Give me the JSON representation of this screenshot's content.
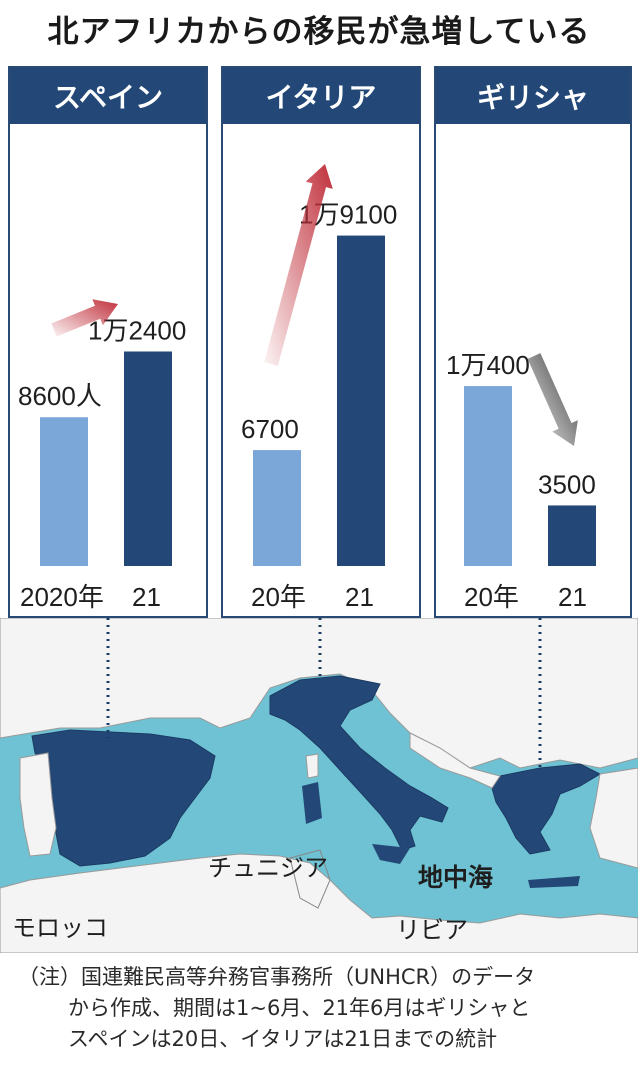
{
  "title": "北アフリカからの移民が急増している",
  "chart_data": [
    {
      "type": "bar",
      "title": "スペイン",
      "categories": [
        "2020年",
        "21"
      ],
      "values": [
        8600,
        12400
      ],
      "value_labels": [
        "8600人",
        "1万2400"
      ],
      "trend": "up",
      "ylim": [
        0,
        20000
      ]
    },
    {
      "type": "bar",
      "title": "イタリア",
      "categories": [
        "20年",
        "21"
      ],
      "values": [
        6700,
        19100
      ],
      "value_labels": [
        "6700",
        "1万9100"
      ],
      "trend": "up",
      "ylim": [
        0,
        20000
      ]
    },
    {
      "type": "bar",
      "title": "ギリシャ",
      "categories": [
        "20年",
        "21"
      ],
      "values": [
        10400,
        3500
      ],
      "value_labels": [
        "1万400",
        "3500"
      ],
      "trend": "down",
      "ylim": [
        0,
        20000
      ]
    }
  ],
  "map": {
    "labels": {
      "tunisia": "チュニジア",
      "mediterranean": "地中海",
      "morocco": "モロッコ",
      "libya": "リビア"
    }
  },
  "colors": {
    "bar_2020": "#7aa6d8",
    "bar_2021": "#234877",
    "header": "#234877",
    "sea": "#6ec2d3",
    "highlight_country": "#234877",
    "arrow_up": "#c0303b",
    "arrow_down": "#333333"
  },
  "note": {
    "lines": [
      "（注）国連難民高等弁務官事務所（UNHCR）のデータ",
      "から作成、期間は1~6月、21年6月はギリシャと",
      "スペインは20日、イタリアは21日までの統計"
    ]
  }
}
